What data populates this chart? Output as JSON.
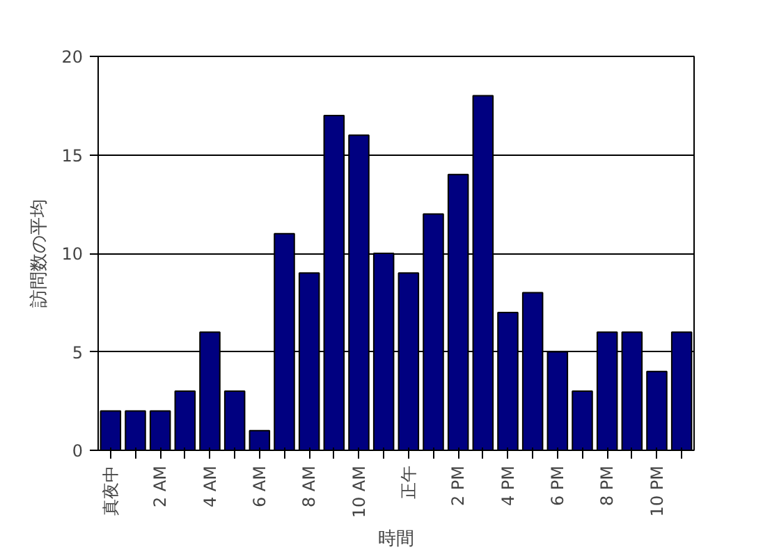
{
  "chart_data": {
    "type": "bar",
    "xlabel": "時間",
    "ylabel": "訪問数の平均",
    "categories": [
      "真夜中",
      null,
      "2 AM",
      null,
      "4 AM",
      null,
      "6 AM",
      null,
      "8 AM",
      null,
      "10 AM",
      null,
      "正午",
      null,
      "2 PM",
      null,
      "4 PM",
      null,
      "6 PM",
      null,
      "8 PM",
      null,
      "10 PM",
      null
    ],
    "values": [
      2,
      2,
      2,
      3,
      6,
      3,
      1,
      11,
      9,
      17,
      16,
      10,
      9,
      12,
      14,
      18,
      7,
      8,
      5,
      3,
      6,
      6,
      4,
      6
    ],
    "color": "#000080",
    "ylim": [
      0,
      20
    ],
    "yticks": [
      0,
      5,
      10,
      15,
      20
    ],
    "grid": "y"
  }
}
